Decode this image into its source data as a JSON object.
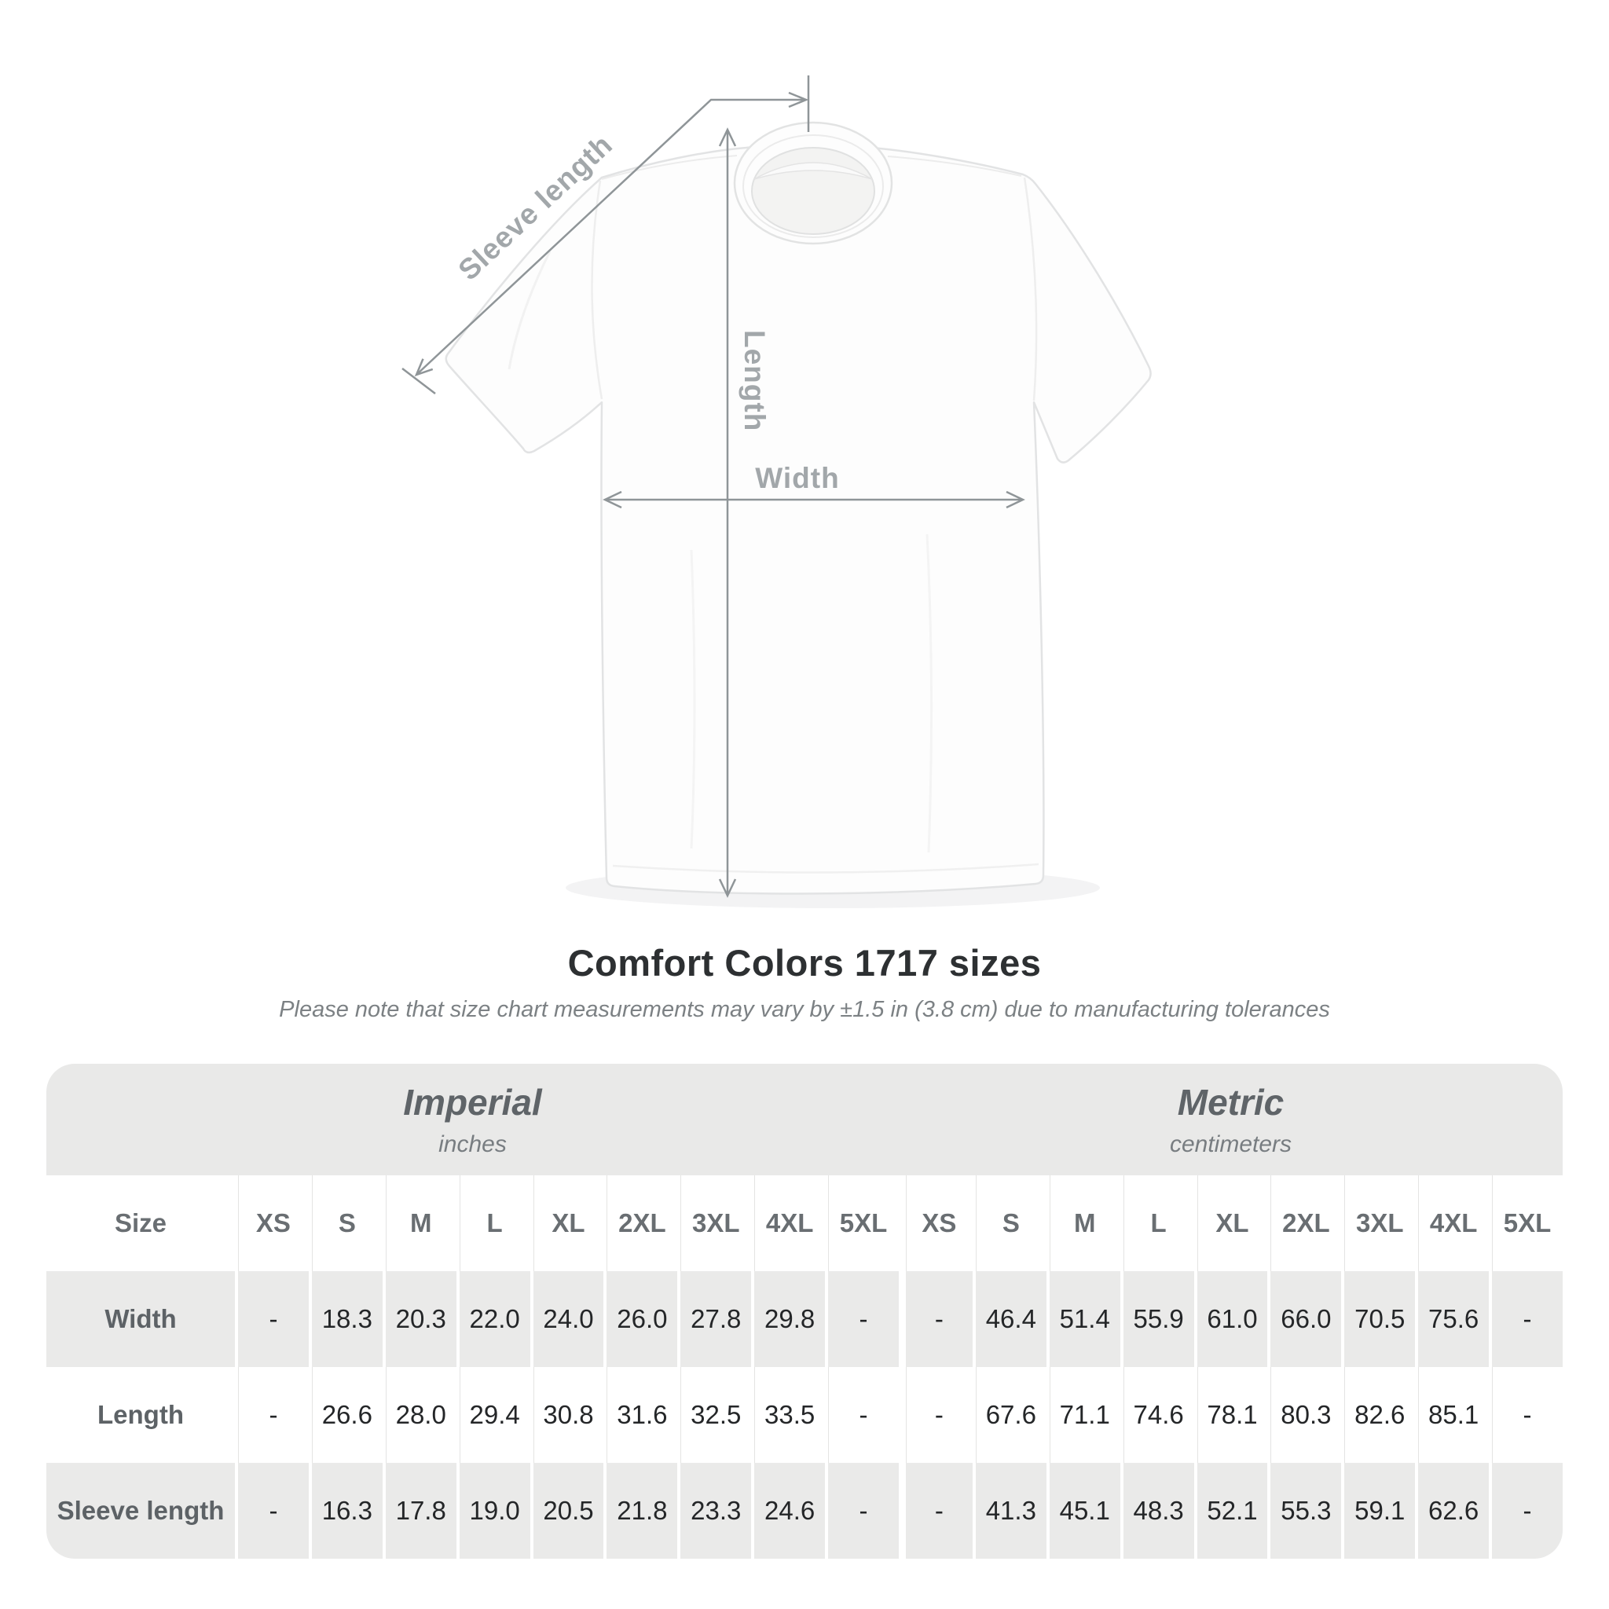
{
  "diagram": {
    "labels": {
      "sleeve_length": "Sleeve length",
      "length": "Length",
      "width": "Width"
    },
    "arrow_color": "#8f9598",
    "label_color": "#a2a7aa"
  },
  "title": "Comfort Colors 1717 sizes",
  "subtitle": "Please note that size chart measurements may vary by ±1.5 in (3.8 cm) due to manufacturing tolerances",
  "table": {
    "groups": {
      "imperial": {
        "title": "Imperial",
        "unit": "inches"
      },
      "metric": {
        "title": "Metric",
        "unit": "centimeters"
      }
    },
    "size_label": "Size",
    "sizes": [
      "XS",
      "S",
      "M",
      "L",
      "XL",
      "2XL",
      "3XL",
      "4XL",
      "5XL"
    ],
    "rows": [
      {
        "label": "Width",
        "imperial": [
          "-",
          "18.3",
          "20.3",
          "22.0",
          "24.0",
          "26.0",
          "27.8",
          "29.8",
          "-"
        ],
        "metric": [
          "-",
          "46.4",
          "51.4",
          "55.9",
          "61.0",
          "66.0",
          "70.5",
          "75.6",
          "-"
        ]
      },
      {
        "label": "Length",
        "imperial": [
          "-",
          "26.6",
          "28.0",
          "29.4",
          "30.8",
          "31.6",
          "32.5",
          "33.5",
          "-"
        ],
        "metric": [
          "-",
          "67.6",
          "71.1",
          "74.6",
          "78.1",
          "80.3",
          "82.6",
          "85.1",
          "-"
        ]
      },
      {
        "label": "Sleeve length",
        "imperial": [
          "-",
          "16.3",
          "17.8",
          "19.0",
          "20.5",
          "21.8",
          "23.3",
          "24.6",
          "-"
        ],
        "metric": [
          "-",
          "41.3",
          "45.1",
          "48.3",
          "52.1",
          "55.3",
          "59.1",
          "62.6",
          "-"
        ]
      }
    ]
  },
  "chart_data": {
    "type": "table",
    "title": "Comfort Colors 1717 sizes",
    "note": "Please note that size chart measurements may vary by ±1.5 in (3.8 cm) due to manufacturing tolerances",
    "column_groups": [
      "Imperial (inches)",
      "Metric (centimeters)"
    ],
    "columns": [
      "Size",
      "XS",
      "S",
      "M",
      "L",
      "XL",
      "2XL",
      "3XL",
      "4XL",
      "5XL",
      "XS",
      "S",
      "M",
      "L",
      "XL",
      "2XL",
      "3XL",
      "4XL",
      "5XL"
    ],
    "rows": [
      [
        "Width",
        "-",
        "18.3",
        "20.3",
        "22.0",
        "24.0",
        "26.0",
        "27.8",
        "29.8",
        "-",
        "-",
        "46.4",
        "51.4",
        "55.9",
        "61.0",
        "66.0",
        "70.5",
        "75.6",
        "-"
      ],
      [
        "Length",
        "-",
        "26.6",
        "28.0",
        "29.4",
        "30.8",
        "31.6",
        "32.5",
        "33.5",
        "-",
        "-",
        "67.6",
        "71.1",
        "74.6",
        "78.1",
        "80.3",
        "82.6",
        "85.1",
        "-"
      ],
      [
        "Sleeve length",
        "-",
        "16.3",
        "17.8",
        "19.0",
        "20.5",
        "21.8",
        "23.3",
        "24.6",
        "-",
        "-",
        "41.3",
        "45.1",
        "48.3",
        "52.1",
        "55.3",
        "59.1",
        "62.6",
        "-"
      ]
    ]
  }
}
